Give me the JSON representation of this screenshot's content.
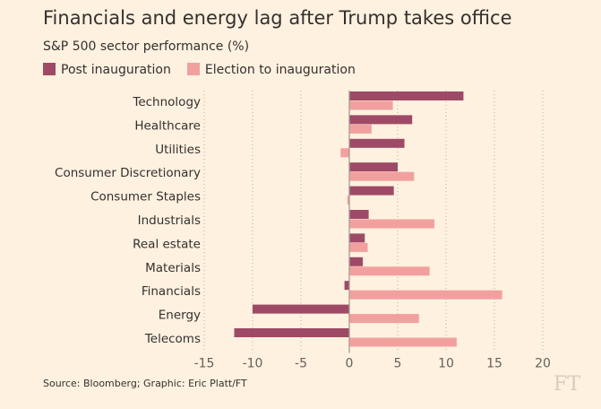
{
  "chart_data": {
    "type": "bar",
    "orientation": "horizontal",
    "title": "Financials and energy lag after Trump takes office",
    "subtitle": "S&P 500 sector performance (%)",
    "categories": [
      "Technology",
      "Healthcare",
      "Utilities",
      "Consumer Discretionary",
      "Consumer Staples",
      "Industrials",
      "Real estate",
      "Materials",
      "Financials",
      "Energy",
      "Telecoms"
    ],
    "series": [
      {
        "name": "Post inauguration",
        "color": "#9e4a66",
        "values": [
          11.8,
          6.5,
          5.7,
          5.0,
          4.6,
          2.0,
          1.6,
          1.4,
          -0.5,
          -10.0,
          -11.9
        ]
      },
      {
        "name": "Election to inauguration",
        "color": "#f2a09e",
        "values": [
          4.5,
          2.3,
          -0.9,
          6.7,
          -0.2,
          8.8,
          1.9,
          8.3,
          15.8,
          7.2,
          11.1
        ]
      }
    ],
    "xlim": [
      -15,
      20
    ],
    "xticks": [
      -15,
      -10,
      -5,
      0,
      5,
      10,
      15,
      20
    ],
    "grid": true,
    "legend": "top-left",
    "source": "Source: Bloomberg; Graphic: Eric Platt/FT",
    "logo": "FT"
  }
}
